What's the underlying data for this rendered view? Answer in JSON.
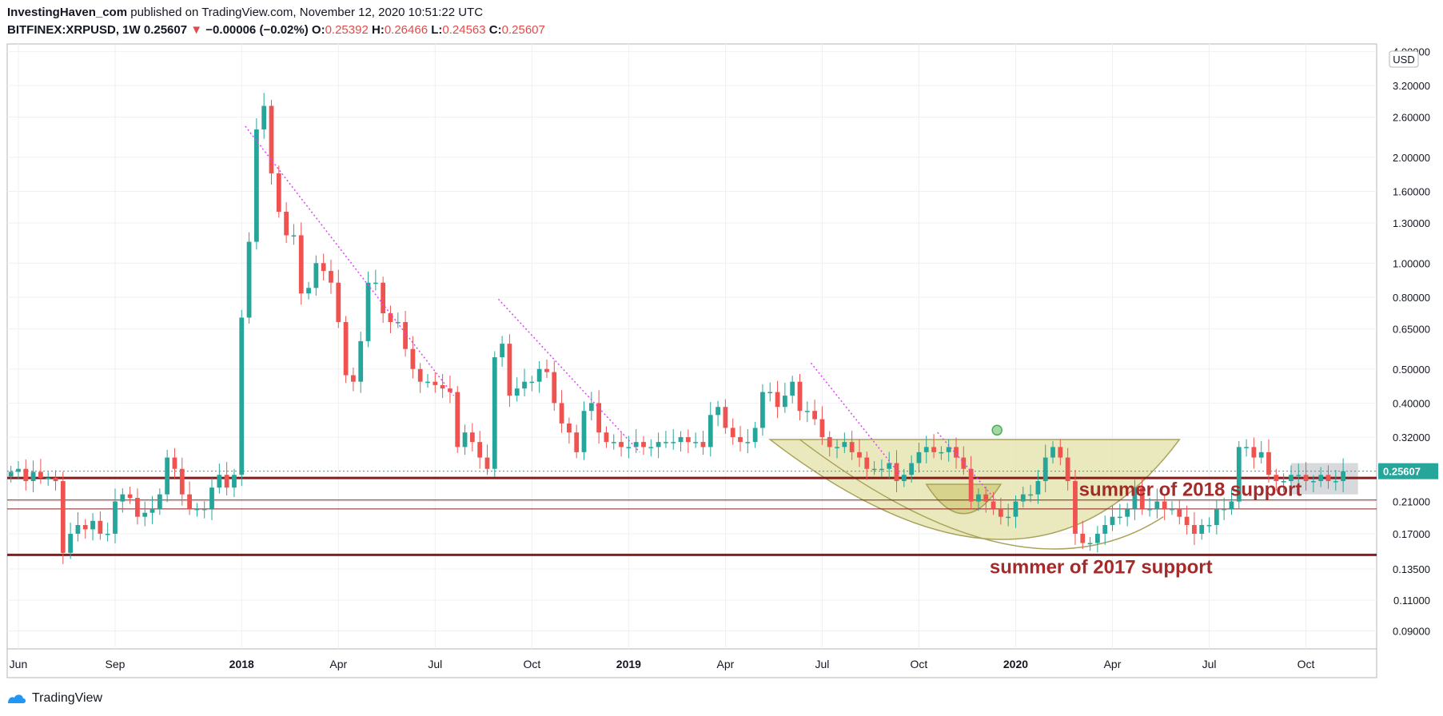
{
  "header": {
    "publisher": "InvestingHaven_com",
    "published_text": "published on TradingView.com, November 12, 2020 10:51:22 UTC",
    "symbol": "BITFINEX:XRPUSD, 1W",
    "last": "0.25607",
    "change_arrow": "▼",
    "change": "−0.00006 (−0.02%)",
    "o_label": "O:",
    "o_value": "0.25392",
    "h_label": "H:",
    "h_value": "0.26466",
    "l_label": "L:",
    "l_value": "0.24563",
    "c_label": "C:",
    "c_value": "0.25607"
  },
  "footer": {
    "brand": "TradingView"
  },
  "colors": {
    "up": "#26a69a",
    "down": "#ef5350",
    "support": "#8b1a1a",
    "cup_fill": "#e3e1a8",
    "cup_stroke": "#a8a35a",
    "trend": "#e040fb",
    "annotation": "#a52a2a",
    "grid": "#eef0f3",
    "axis_text": "#131722",
    "price_badge": "#26a69a"
  },
  "chart_data": {
    "type": "candlestick",
    "scale": "log",
    "currency_label": "USD",
    "ylim": [
      0.08,
      4.2
    ],
    "y_ticks": [
      {
        "v": 4.0,
        "label": "4.00000"
      },
      {
        "v": 3.2,
        "label": "3.20000"
      },
      {
        "v": 2.6,
        "label": "2.60000"
      },
      {
        "v": 2.0,
        "label": "2.00000"
      },
      {
        "v": 1.6,
        "label": "1.60000"
      },
      {
        "v": 1.3,
        "label": "1.30000"
      },
      {
        "v": 1.0,
        "label": "1.00000"
      },
      {
        "v": 0.8,
        "label": "0.80000"
      },
      {
        "v": 0.65,
        "label": "0.65000"
      },
      {
        "v": 0.5,
        "label": "0.50000"
      },
      {
        "v": 0.4,
        "label": "0.40000"
      },
      {
        "v": 0.32,
        "label": "0.32000"
      },
      {
        "v": 0.21,
        "label": "0.21000"
      },
      {
        "v": 0.17,
        "label": "0.17000"
      },
      {
        "v": 0.135,
        "label": "0.13500"
      },
      {
        "v": 0.11,
        "label": "0.11000"
      },
      {
        "v": 0.09,
        "label": "0.09000"
      }
    ],
    "last_price": {
      "v": 0.25607,
      "label": "0.25607"
    },
    "x_ticks": [
      {
        "i": 1,
        "label": "Jun",
        "bold": false
      },
      {
        "i": 14,
        "label": "Sep",
        "bold": false
      },
      {
        "i": 31,
        "label": "2018",
        "bold": true
      },
      {
        "i": 44,
        "label": "Apr",
        "bold": false
      },
      {
        "i": 57,
        "label": "Jul",
        "bold": false
      },
      {
        "i": 70,
        "label": "Oct",
        "bold": false
      },
      {
        "i": 83,
        "label": "2019",
        "bold": true
      },
      {
        "i": 96,
        "label": "Apr",
        "bold": false
      },
      {
        "i": 109,
        "label": "Jul",
        "bold": false
      },
      {
        "i": 122,
        "label": "Oct",
        "bold": false
      },
      {
        "i": 135,
        "label": "2020",
        "bold": true
      },
      {
        "i": 148,
        "label": "Apr",
        "bold": false
      },
      {
        "i": 161,
        "label": "Jul",
        "bold": false
      },
      {
        "i": 174,
        "label": "Oct",
        "bold": false
      }
    ],
    "closes": [
      0.255,
      0.26,
      0.24,
      0.255,
      0.245,
      0.245,
      0.24,
      0.15,
      0.17,
      0.18,
      0.175,
      0.185,
      0.17,
      0.17,
      0.21,
      0.22,
      0.215,
      0.19,
      0.195,
      0.2,
      0.22,
      0.28,
      0.26,
      0.22,
      0.2,
      0.2,
      0.2,
      0.23,
      0.25,
      0.23,
      0.25,
      0.7,
      1.15,
      2.4,
      2.8,
      1.8,
      1.4,
      1.2,
      1.2,
      0.82,
      0.85,
      1.0,
      0.95,
      0.88,
      0.68,
      0.48,
      0.46,
      0.6,
      0.88,
      0.88,
      0.72,
      0.68,
      0.68,
      0.57,
      0.5,
      0.46,
      0.46,
      0.45,
      0.44,
      0.43,
      0.3,
      0.33,
      0.31,
      0.28,
      0.26,
      0.54,
      0.59,
      0.42,
      0.44,
      0.46,
      0.46,
      0.5,
      0.49,
      0.4,
      0.35,
      0.33,
      0.29,
      0.38,
      0.4,
      0.33,
      0.31,
      0.31,
      0.3,
      0.3,
      0.31,
      0.3,
      0.3,
      0.31,
      0.31,
      0.31,
      0.32,
      0.31,
      0.31,
      0.3,
      0.37,
      0.39,
      0.34,
      0.32,
      0.31,
      0.31,
      0.34,
      0.43,
      0.43,
      0.39,
      0.42,
      0.46,
      0.38,
      0.38,
      0.36,
      0.32,
      0.3,
      0.3,
      0.31,
      0.29,
      0.28,
      0.26,
      0.26,
      0.26,
      0.27,
      0.24,
      0.25,
      0.27,
      0.29,
      0.3,
      0.29,
      0.29,
      0.3,
      0.28,
      0.26,
      0.21,
      0.22,
      0.21,
      0.2,
      0.19,
      0.19,
      0.21,
      0.22,
      0.22,
      0.24,
      0.28,
      0.3,
      0.28,
      0.24,
      0.17,
      0.16,
      0.16,
      0.17,
      0.18,
      0.19,
      0.19,
      0.2,
      0.23,
      0.2,
      0.2,
      0.21,
      0.2,
      0.2,
      0.19,
      0.18,
      0.17,
      0.18,
      0.18,
      0.2,
      0.2,
      0.21,
      0.3,
      0.3,
      0.28,
      0.29,
      0.25,
      0.24,
      0.24,
      0.25,
      0.25,
      0.24,
      0.24,
      0.25,
      0.24,
      0.24,
      0.256
    ],
    "support_lines": [
      {
        "v": 0.245,
        "weight": "heavy"
      },
      {
        "v": 0.212,
        "weight": "thin"
      },
      {
        "v": 0.2,
        "weight": "thin"
      },
      {
        "v": 0.148,
        "weight": "heavy"
      }
    ],
    "trend_lines": [
      {
        "from_i": 31.5,
        "from_v": 2.45,
        "to_i": 59.5,
        "to_v": 0.42
      },
      {
        "from_i": 65.5,
        "from_v": 0.79,
        "to_i": 84.5,
        "to_v": 0.29
      },
      {
        "from_i": 107.5,
        "from_v": 0.52,
        "to_i": 119.5,
        "to_v": 0.25
      },
      {
        "from_i": 124.5,
        "from_v": 0.33,
        "to_i": 132.5,
        "to_v": 0.21
      }
    ],
    "annotations": [
      {
        "text": "summer of 2018 support",
        "i": 143.5,
        "v": 0.218
      },
      {
        "text": "summer of 2017 support",
        "i": 131.5,
        "v": 0.131
      }
    ]
  }
}
